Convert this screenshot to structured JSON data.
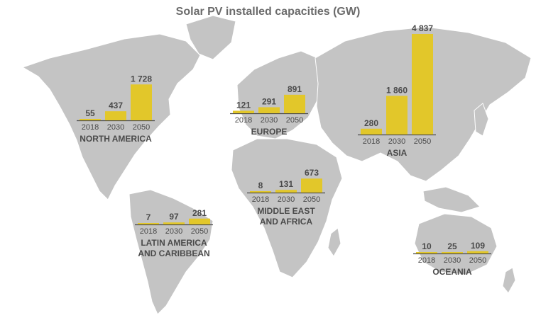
{
  "chart_data": {
    "type": "bar",
    "title": "Solar PV installed capacities (GW)",
    "categories": [
      "2018",
      "2030",
      "2050"
    ],
    "regions": [
      {
        "name": [
          "NORTH AMERICA"
        ],
        "values": [
          55,
          437,
          1728
        ],
        "labels": [
          "55",
          "437",
          "1 728"
        ]
      },
      {
        "name": [
          "EUROPE"
        ],
        "values": [
          121,
          291,
          891
        ],
        "labels": [
          "121",
          "291",
          "891"
        ]
      },
      {
        "name": [
          "ASIA"
        ],
        "values": [
          280,
          1860,
          4837
        ],
        "labels": [
          "280",
          "1 860",
          "4 837"
        ]
      },
      {
        "name": [
          "MIDDLE EAST",
          "AND AFRICA"
        ],
        "values": [
          8,
          131,
          673
        ],
        "labels": [
          "8",
          "131",
          "673"
        ]
      },
      {
        "name": [
          "LATIN AMERICA",
          "AND CARIBBEAN"
        ],
        "values": [
          7,
          97,
          281
        ],
        "labels": [
          "7",
          "97",
          "281"
        ]
      },
      {
        "name": [
          "OCEANIA"
        ],
        "values": [
          10,
          25,
          109
        ],
        "labels": [
          "10",
          "25",
          "109"
        ]
      }
    ]
  },
  "colors": {
    "bar": "#e2c72a",
    "map": "#c4c4c4",
    "text": "#4a4a4a"
  }
}
